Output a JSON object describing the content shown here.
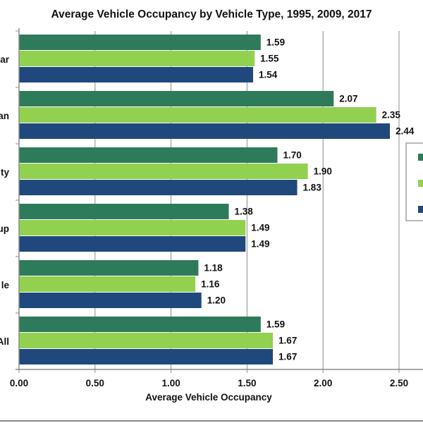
{
  "chart_data": {
    "type": "bar",
    "orientation": "horizontal",
    "title": "Average Vehicle Occupancy by Vehicle Type, 1995, 2009, 2017",
    "xlabel": "Average Vehicle Occupancy",
    "ylabel": "",
    "categories": [
      "ar",
      "an",
      "ty",
      "up",
      "le",
      "All"
    ],
    "series": [
      {
        "color": "#2e7b5c",
        "values": [
          1.59,
          2.07,
          1.7,
          1.38,
          1.18,
          1.59
        ]
      },
      {
        "color": "#92d050",
        "values": [
          1.55,
          2.35,
          1.9,
          1.49,
          1.16,
          1.67
        ]
      },
      {
        "color": "#1f497d",
        "values": [
          1.54,
          2.44,
          1.83,
          1.49,
          1.2,
          1.67
        ]
      }
    ],
    "xlim": [
      0,
      2.5
    ],
    "xticks": [
      "0.00",
      "0.50",
      "1.00",
      "1.50",
      "2.00",
      "2.50"
    ],
    "grid": "vertical",
    "legend": "right",
    "data_labels": true
  }
}
